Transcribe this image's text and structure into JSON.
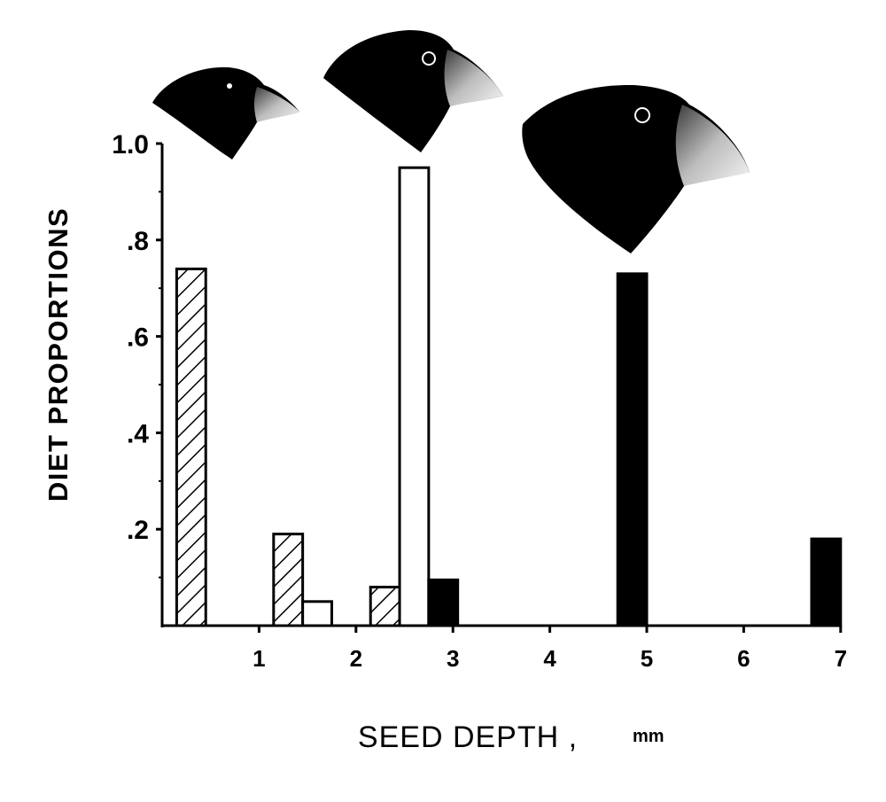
{
  "chart_data": {
    "type": "bar",
    "ylabel": "DIET PROPORTIONS",
    "xlabel": "SEED DEPTH ,",
    "xlabel_unit": "mm",
    "xlim": [
      0,
      7
    ],
    "ylim": [
      0,
      1.0
    ],
    "x_ticks": [
      {
        "value": 1,
        "label": "1"
      },
      {
        "value": 2,
        "label": "2"
      },
      {
        "value": 3,
        "label": "3"
      },
      {
        "value": 4,
        "label": "4"
      },
      {
        "value": 5,
        "label": "5"
      },
      {
        "value": 6,
        "label": "6"
      },
      {
        "value": 7,
        "label": "7"
      }
    ],
    "y_ticks": [
      {
        "value": 0.2,
        "label": ".2"
      },
      {
        "value": 0.4,
        "label": ".4"
      },
      {
        "value": 0.6,
        "label": ".6"
      },
      {
        "value": 0.8,
        "label": ".8"
      },
      {
        "value": 1.0,
        "label": "1.0"
      }
    ],
    "series": [
      {
        "fill": "hatched",
        "bars": [
          {
            "x_start": 0.15,
            "x_end": 0.45,
            "value": 0.74
          },
          {
            "x_start": 1.15,
            "x_end": 1.45,
            "value": 0.19
          },
          {
            "x_start": 2.15,
            "x_end": 2.45,
            "value": 0.08
          }
        ]
      },
      {
        "fill": "white",
        "bars": [
          {
            "x_start": 1.45,
            "x_end": 1.75,
            "value": 0.05
          },
          {
            "x_start": 2.45,
            "x_end": 2.75,
            "value": 0.95
          }
        ]
      },
      {
        "fill": "black",
        "bars": [
          {
            "x_start": 2.75,
            "x_end": 3.05,
            "value": 0.095
          },
          {
            "x_start": 4.7,
            "x_end": 5.0,
            "value": 0.73
          },
          {
            "x_start": 6.7,
            "x_end": 7.0,
            "value": 0.18
          }
        ]
      }
    ],
    "grid": false,
    "legend": "bird head illustrations above the plot"
  }
}
